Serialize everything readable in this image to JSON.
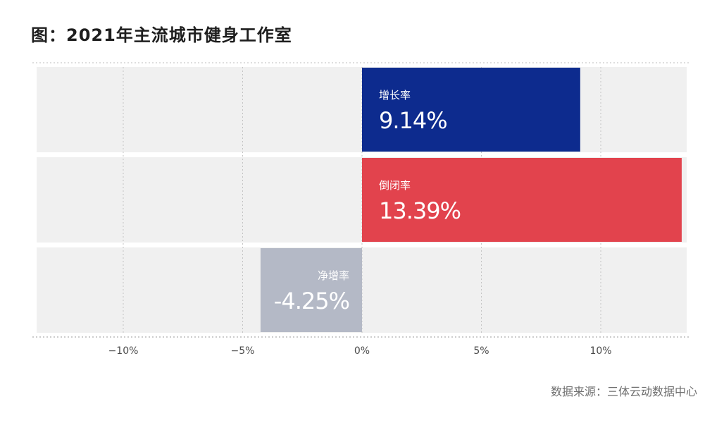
{
  "title": "图：2021年主流城市健身工作室",
  "source_label": "数据来源：三体云动数据中心",
  "chart_data": {
    "type": "bar",
    "orientation": "horizontal",
    "categories": [
      "增长率",
      "倒闭率",
      "净增率"
    ],
    "values": [
      9.14,
      13.39,
      -4.25
    ],
    "value_labels": [
      "9.14%",
      "13.39%",
      "-4.25%"
    ],
    "bar_colors": [
      "#0d2b8e",
      "#e2434d",
      "#b4b9c6"
    ],
    "x_ticks": [
      -10,
      -5,
      0,
      5,
      10
    ],
    "x_tick_labels": [
      "−10%",
      "−5%",
      "0%",
      "5%",
      "10%"
    ],
    "xlim": [
      -13.6,
      13.6
    ],
    "grid": true,
    "background_color": "#f0f0f0",
    "category_label_position": "inside-bar"
  }
}
